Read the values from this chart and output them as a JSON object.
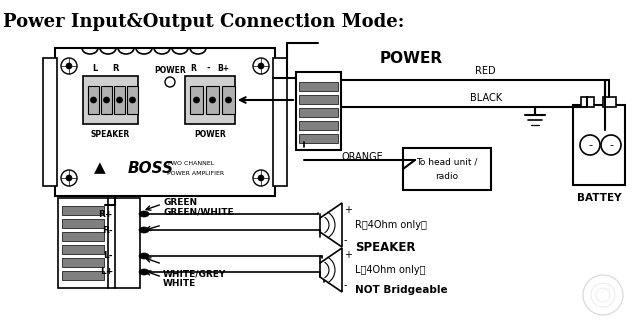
{
  "title": "Power Input&Output Connection Mode:",
  "bg_color": "#ffffff",
  "labels": {
    "power": "POWER",
    "red": "RED",
    "black": "BLACK",
    "orange": "ORANGE",
    "battery": "BATTEY",
    "green": "GREEN",
    "green_white": "GREEN/WHITE",
    "white_grey": "WHITE/GREY",
    "white": "WHITE",
    "r_speaker": "R（4Ohm only）",
    "l_speaker": "L（4Ohm only）",
    "speaker_label": "SPEAKER",
    "not_bridgeable": "NOT Bridgeable",
    "speaker_conn": "SPEAKER",
    "power_conn": "POWER",
    "r_plus": "R+",
    "r_minus": "R-",
    "l_minus": "L-",
    "l_plus": "L+"
  }
}
